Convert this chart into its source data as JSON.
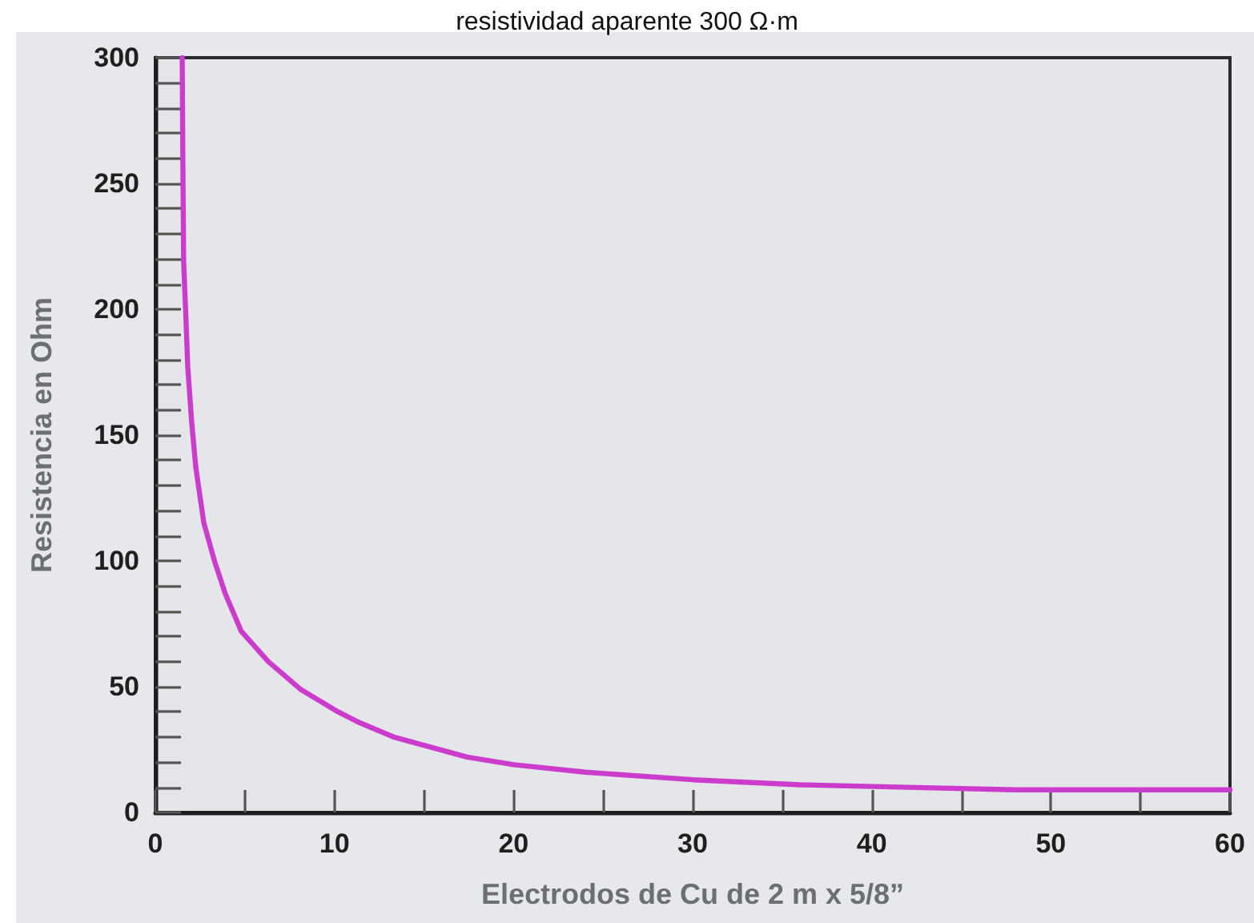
{
  "chart_data": {
    "type": "line",
    "title": "resistividad aparente 300 Ω·m",
    "xlabel": "Electrodos de Cu de 2 m x 5/8”",
    "ylabel": "Resistencia en Ohm",
    "x": [
      1.5,
      1.54,
      1.58,
      1.7,
      1.81,
      2.03,
      2.26,
      2.71,
      3.3,
      3.9,
      4.8,
      6.3,
      8.1,
      10.2,
      11.3,
      13.3,
      17.4,
      20,
      24,
      30,
      36,
      42,
      48,
      54,
      60
    ],
    "values": [
      300,
      255,
      219,
      198,
      177,
      155,
      137,
      115,
      100,
      87,
      72,
      60,
      49,
      40,
      36,
      30,
      22,
      19,
      16,
      13,
      11,
      10,
      9,
      9,
      9
    ],
    "color": "#cc3ccc",
    "marker": "none",
    "line_style": "solid",
    "xlim": [
      0,
      60
    ],
    "xticks": [
      0,
      {
        "value": 5,
        "label": null
      },
      10,
      {
        "value": 15,
        "label": null
      },
      20,
      {
        "value": 25,
        "label": null
      },
      30,
      {
        "value": 35,
        "label": null
      },
      40,
      {
        "value": 45,
        "label": null
      },
      50,
      {
        "value": 55,
        "label": null
      },
      60
    ],
    "ylim": [
      0,
      300
    ],
    "yticks": [
      0,
      {
        "value": 10,
        "label": null
      },
      {
        "value": 20,
        "label": null
      },
      {
        "value": 30,
        "label": null
      },
      {
        "value": 40,
        "label": null
      },
      50,
      {
        "value": 60,
        "label": null
      },
      {
        "value": 70,
        "label": null
      },
      {
        "value": 80,
        "label": null
      },
      {
        "value": 90,
        "label": null
      },
      100,
      {
        "value": 110,
        "label": null
      },
      {
        "value": 120,
        "label": null
      },
      {
        "value": 130,
        "label": null
      },
      {
        "value": 140,
        "label": null
      },
      150,
      {
        "value": 160,
        "label": null
      },
      {
        "value": 170,
        "label": null
      },
      {
        "value": 180,
        "label": null
      },
      {
        "value": 190,
        "label": null
      },
      200,
      {
        "value": 210,
        "label": null
      },
      {
        "value": 220,
        "label": null
      },
      {
        "value": 230,
        "label": null
      },
      {
        "value": 240,
        "label": null
      },
      250,
      {
        "value": 260,
        "label": null
      },
      {
        "value": 270,
        "label": null
      },
      {
        "value": 280,
        "label": null
      },
      {
        "value": 290,
        "label": null
      },
      300
    ]
  }
}
